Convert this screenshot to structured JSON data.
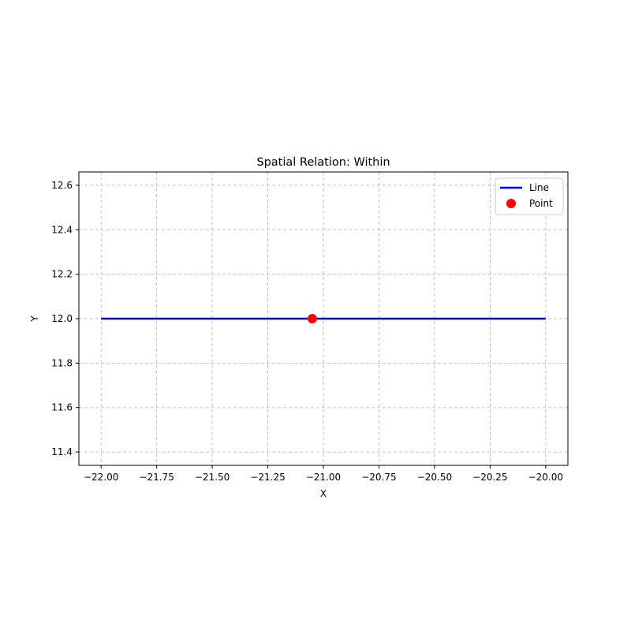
{
  "chart_data": {
    "type": "line",
    "title": "Spatial Relation: Within",
    "xlabel": "X",
    "ylabel": "Y",
    "xlim": [
      -22.1,
      -19.9
    ],
    "ylim": [
      11.34,
      12.66
    ],
    "xticks": [
      -22.0,
      -21.75,
      -21.5,
      -21.25,
      -21.0,
      -20.75,
      -20.5,
      -20.25,
      -20.0
    ],
    "xtick_labels": [
      "−22.00",
      "−21.75",
      "−21.50",
      "−21.25",
      "−21.00",
      "−20.75",
      "−20.50",
      "−20.25",
      "−20.00"
    ],
    "yticks": [
      11.4,
      11.6,
      11.8,
      12.0,
      12.2,
      12.4,
      12.6
    ],
    "ytick_labels": [
      "11.4",
      "11.6",
      "11.8",
      "12.0",
      "12.2",
      "12.4",
      "12.6"
    ],
    "grid": true,
    "legend_position": "top-right",
    "series": [
      {
        "name": "Line",
        "kind": "line",
        "color": "#0000ff",
        "x": [
          -22.0,
          -20.0
        ],
        "y": [
          12.0,
          12.0
        ]
      },
      {
        "name": "Point",
        "kind": "scatter",
        "color": "#ff0000",
        "x": [
          -21.05
        ],
        "y": [
          12.0
        ]
      }
    ]
  }
}
